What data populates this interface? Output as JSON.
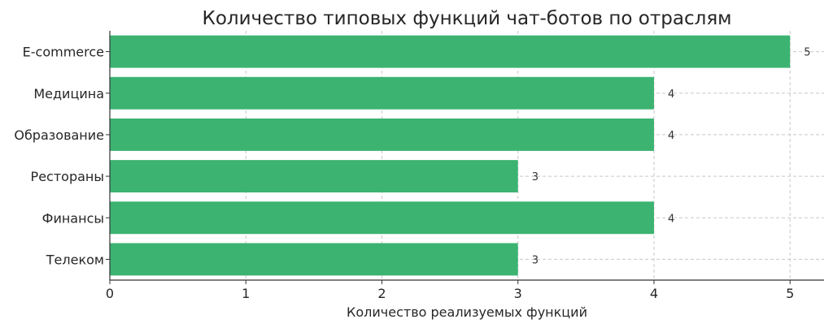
{
  "chart_data": {
    "type": "bar",
    "orientation": "horizontal",
    "title": "Количество типовых функций чат-ботов по отраслям",
    "xlabel": "Количество реализуемых функций",
    "ylabel": "",
    "categories": [
      "E-commerce",
      "Медицина",
      "Образование",
      "Рестораны",
      "Финансы",
      "Телеком"
    ],
    "values": [
      5,
      4,
      4,
      3,
      4,
      3
    ],
    "data_labels": [
      "5",
      "4",
      "4",
      "3",
      "4",
      "3"
    ],
    "xlim": [
      0,
      5.25
    ],
    "xticks": [
      "0",
      "1",
      "2",
      "3",
      "4",
      "5"
    ],
    "grid": true,
    "bar_color": "#3cb371",
    "grid_color": "#c8c8c8"
  }
}
